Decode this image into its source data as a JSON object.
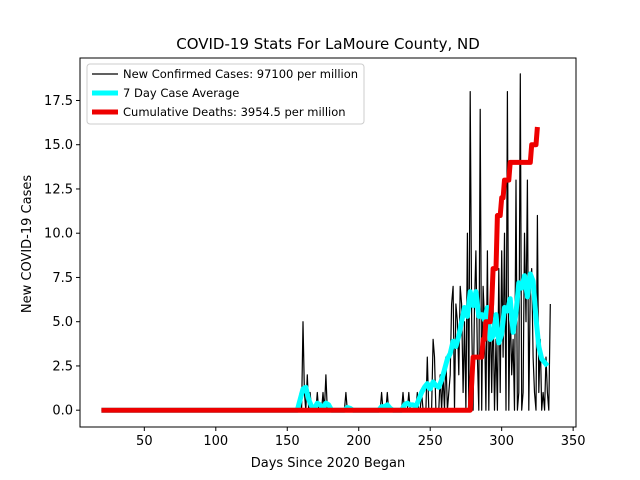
{
  "chart_data": {
    "type": "line",
    "title": "COVID-19 Stats For LaMoure County, ND",
    "xlabel": "Days Since 2020 Began",
    "ylabel": "New COVID-19 Cases",
    "xlim": [
      5,
      352
    ],
    "ylim": [
      -0.95,
      19.9
    ],
    "x_ticks": [
      50,
      100,
      150,
      200,
      250,
      300,
      350
    ],
    "x_tick_labels": [
      "50",
      "100",
      "150",
      "200",
      "250",
      "300",
      "350"
    ],
    "y_ticks": [
      0,
      2.5,
      5,
      7.5,
      10,
      12.5,
      15,
      17.5
    ],
    "y_tick_labels": [
      "0.0",
      "2.5",
      "5.0",
      "7.5",
      "10.0",
      "12.5",
      "15.0",
      "17.5"
    ],
    "legend_position": "top-left",
    "grid": false,
    "series": [
      {
        "name": "New Confirmed Cases: 97100 per million",
        "color": "#000000",
        "points": [
          [
            20,
            0
          ],
          [
            158,
            0
          ],
          [
            159,
            1
          ],
          [
            160,
            0
          ],
          [
            161,
            5
          ],
          [
            162,
            1
          ],
          [
            163,
            0
          ],
          [
            164,
            2
          ],
          [
            165,
            0
          ],
          [
            166,
            1
          ],
          [
            167,
            0
          ],
          [
            170,
            0
          ],
          [
            171,
            1
          ],
          [
            172,
            0
          ],
          [
            174,
            0
          ],
          [
            175,
            1
          ],
          [
            176,
            0
          ],
          [
            177,
            2
          ],
          [
            178,
            0
          ],
          [
            179,
            0
          ],
          [
            180,
            0
          ],
          [
            190,
            0
          ],
          [
            191,
            1
          ],
          [
            192,
            0
          ],
          [
            215,
            0
          ],
          [
            216,
            1
          ],
          [
            217,
            0
          ],
          [
            219,
            0
          ],
          [
            220,
            1
          ],
          [
            221,
            0
          ],
          [
            230,
            0
          ],
          [
            231,
            1
          ],
          [
            232,
            0
          ],
          [
            234,
            0
          ],
          [
            235,
            1
          ],
          [
            236,
            0
          ],
          [
            240,
            0
          ],
          [
            241,
            1
          ],
          [
            242,
            0
          ],
          [
            243,
            0
          ],
          [
            244,
            1
          ],
          [
            245,
            0
          ],
          [
            247,
            0
          ],
          [
            248,
            3
          ],
          [
            249,
            0
          ],
          [
            251,
            0
          ],
          [
            252,
            4
          ],
          [
            253,
            3
          ],
          [
            254,
            0
          ],
          [
            256,
            0
          ],
          [
            257,
            2
          ],
          [
            258,
            0
          ],
          [
            259,
            2
          ],
          [
            260,
            0
          ],
          [
            261,
            3
          ],
          [
            262,
            0
          ],
          [
            264,
            2
          ],
          [
            265,
            6
          ],
          [
            266,
            7
          ],
          [
            267,
            0
          ],
          [
            268,
            6
          ],
          [
            269,
            5
          ],
          [
            270,
            2
          ],
          [
            271,
            7
          ],
          [
            272,
            6
          ],
          [
            273,
            1
          ],
          [
            274,
            5
          ],
          [
            275,
            0
          ],
          [
            276,
            10
          ],
          [
            277,
            0
          ],
          [
            278,
            18
          ],
          [
            279,
            5
          ],
          [
            280,
            0
          ],
          [
            281,
            6
          ],
          [
            282,
            9
          ],
          [
            283,
            3
          ],
          [
            284,
            0
          ],
          [
            285,
            17
          ],
          [
            286,
            0
          ],
          [
            287,
            7
          ],
          [
            288,
            5
          ],
          [
            289,
            0
          ],
          [
            290,
            9
          ],
          [
            291,
            0
          ],
          [
            292,
            6
          ],
          [
            293,
            1
          ],
          [
            294,
            6
          ],
          [
            295,
            0
          ],
          [
            296,
            4
          ],
          [
            297,
            0
          ],
          [
            298,
            8
          ],
          [
            299,
            1
          ],
          [
            300,
            9
          ],
          [
            301,
            3
          ],
          [
            302,
            10
          ],
          [
            303,
            0
          ],
          [
            304,
            18
          ],
          [
            305,
            0
          ],
          [
            306,
            6
          ],
          [
            307,
            2
          ],
          [
            308,
            4
          ],
          [
            309,
            0
          ],
          [
            310,
            13
          ],
          [
            311,
            0
          ],
          [
            312,
            1
          ],
          [
            313,
            19
          ],
          [
            314,
            0
          ],
          [
            315,
            1
          ],
          [
            316,
            10
          ],
          [
            317,
            5
          ],
          [
            318,
            13
          ],
          [
            319,
            0
          ],
          [
            320,
            7
          ],
          [
            321,
            8
          ],
          [
            322,
            3
          ],
          [
            323,
            1
          ],
          [
            324,
            0
          ],
          [
            325,
            11
          ],
          [
            326,
            1
          ],
          [
            327,
            4
          ],
          [
            328,
            0
          ],
          [
            329,
            1
          ],
          [
            330,
            0
          ],
          [
            331,
            3
          ],
          [
            332,
            1
          ],
          [
            333,
            0
          ],
          [
            334,
            6
          ]
        ]
      },
      {
        "name": "7 Day Case Average",
        "color": "#00ffff",
        "points": [
          [
            20,
            0
          ],
          [
            157,
            0
          ],
          [
            159,
            0.6
          ],
          [
            161,
            1.2
          ],
          [
            163,
            1.3
          ],
          [
            165,
            0.6
          ],
          [
            167,
            0.2
          ],
          [
            169,
            0.1
          ],
          [
            171,
            0.4
          ],
          [
            173,
            0.3
          ],
          [
            175,
            0.1
          ],
          [
            177,
            0.4
          ],
          [
            179,
            0.3
          ],
          [
            181,
            0
          ],
          [
            190,
            0
          ],
          [
            192,
            0.15
          ],
          [
            194,
            0.1
          ],
          [
            196,
            0
          ],
          [
            214,
            0
          ],
          [
            216,
            0.2
          ],
          [
            218,
            0.2
          ],
          [
            220,
            0.3
          ],
          [
            222,
            0.1
          ],
          [
            224,
            0
          ],
          [
            230,
            0
          ],
          [
            232,
            0.3
          ],
          [
            234,
            0.4
          ],
          [
            236,
            0.3
          ],
          [
            238,
            0.3
          ],
          [
            240,
            0.2
          ],
          [
            242,
            0.6
          ],
          [
            244,
            1.0
          ],
          [
            246,
            1.3
          ],
          [
            248,
            1.5
          ],
          [
            250,
            1.2
          ],
          [
            252,
            1.6
          ],
          [
            254,
            1.4
          ],
          [
            256,
            1.3
          ],
          [
            258,
            1.7
          ],
          [
            260,
            2.3
          ],
          [
            262,
            2.9
          ],
          [
            264,
            3.2
          ],
          [
            266,
            3.9
          ],
          [
            268,
            3.6
          ],
          [
            270,
            4.2
          ],
          [
            272,
            5.0
          ],
          [
            274,
            5.8
          ],
          [
            276,
            5.3
          ],
          [
            278,
            6.7
          ],
          [
            280,
            5.9
          ],
          [
            282,
            6.7
          ],
          [
            284,
            5.3
          ],
          [
            286,
            5.4
          ],
          [
            288,
            5.1
          ],
          [
            290,
            5.8
          ],
          [
            292,
            4.0
          ],
          [
            294,
            4.2
          ],
          [
            296,
            5.4
          ],
          [
            298,
            3.8
          ],
          [
            300,
            4.3
          ],
          [
            302,
            5.8
          ],
          [
            304,
            5.6
          ],
          [
            306,
            6.3
          ],
          [
            308,
            4.4
          ],
          [
            310,
            5.5
          ],
          [
            312,
            7.2
          ],
          [
            314,
            6.9
          ],
          [
            316,
            7.6
          ],
          [
            318,
            6.4
          ],
          [
            320,
            7.7
          ],
          [
            322,
            7.3
          ],
          [
            324,
            5.2
          ],
          [
            326,
            3.6
          ],
          [
            328,
            2.9
          ],
          [
            330,
            2.7
          ],
          [
            332,
            2.5
          ]
        ]
      },
      {
        "name": "Cumulative Deaths: 3954.5 per million",
        "color": "#ee0000",
        "points": [
          [
            20,
            0
          ],
          [
            278,
            0
          ],
          [
            280,
            3
          ],
          [
            282,
            3
          ],
          [
            284,
            3
          ],
          [
            286,
            3
          ],
          [
            287,
            4
          ],
          [
            288,
            4
          ],
          [
            289,
            5
          ],
          [
            290,
            5
          ],
          [
            291,
            5
          ],
          [
            292,
            5
          ],
          [
            293,
            6
          ],
          [
            294,
            8
          ],
          [
            295,
            8
          ],
          [
            296,
            8
          ],
          [
            297,
            11
          ],
          [
            298,
            11
          ],
          [
            299,
            11
          ],
          [
            300,
            12
          ],
          [
            301,
            12
          ],
          [
            302,
            13
          ],
          [
            303,
            13
          ],
          [
            304,
            13
          ],
          [
            305,
            13
          ],
          [
            306,
            14
          ],
          [
            307,
            14
          ],
          [
            320,
            14
          ],
          [
            321,
            15
          ],
          [
            322,
            15
          ],
          [
            323,
            15
          ],
          [
            324,
            15
          ],
          [
            325,
            16
          ]
        ]
      }
    ]
  }
}
